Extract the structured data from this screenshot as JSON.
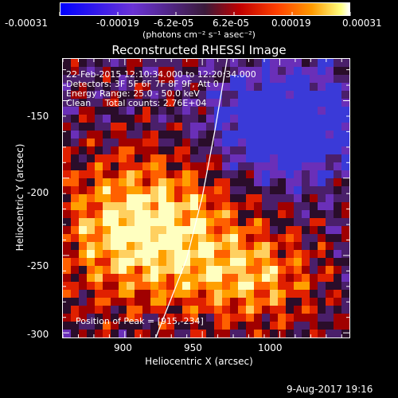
{
  "colorbar": {
    "ticks": [
      "-0.00031",
      "-0.00019",
      "-6.2e-05",
      "6.2e-05",
      "0.00019",
      "0.00031"
    ],
    "unit_label": "(photons cm⁻² s⁻¹ asec⁻²)",
    "colors": [
      "#0000ff",
      "#6a33d6",
      "#3a1a3a",
      "#c00000",
      "#ff4000",
      "#ff9a00",
      "#ffff80",
      "#ffffff"
    ]
  },
  "plot": {
    "title": "Reconstructed RHESSI Image",
    "info_lines": [
      "22-Feb-2015 12:10:34.000 to 12:20:34.000",
      "Detectors: 3F 5F 6F 7F 8F 9F, Att 0",
      "Energy Range: 25.0 - 50.0 keV",
      "Clean     Total counts: 2.76E+04"
    ],
    "peak_label": "Position of Peak = [915,-234]",
    "xlabel": "Heliocentric X (arcsec)",
    "ylabel": "Heliocentric Y (arcsec)",
    "xticks": [
      "900",
      "950",
      "1000"
    ],
    "yticks": [
      "-150",
      "-200",
      "-250",
      "-300"
    ]
  },
  "chart_data": {
    "type": "heatmap",
    "title": "Reconstructed RHESSI Image",
    "xlabel": "Heliocentric X (arcsec)",
    "ylabel": "Heliocentric Y (arcsec)",
    "xlim": [
      860,
      1045
    ],
    "ylim": [
      -303,
      -123
    ],
    "x_ticks": [
      900,
      950,
      1000
    ],
    "y_ticks": [
      -150,
      -200,
      -250,
      -300
    ],
    "colorbar_range": [
      -0.00031,
      0.00031
    ],
    "peak_position": [
      915,
      -234
    ],
    "limb_points": [
      [
        920,
        -303
      ],
      [
        940,
        -252
      ],
      [
        950,
        -212
      ],
      [
        958,
        -170
      ],
      [
        966,
        -123
      ]
    ]
  },
  "footer": {
    "timestamp": "9-Aug-2017 19:16"
  }
}
